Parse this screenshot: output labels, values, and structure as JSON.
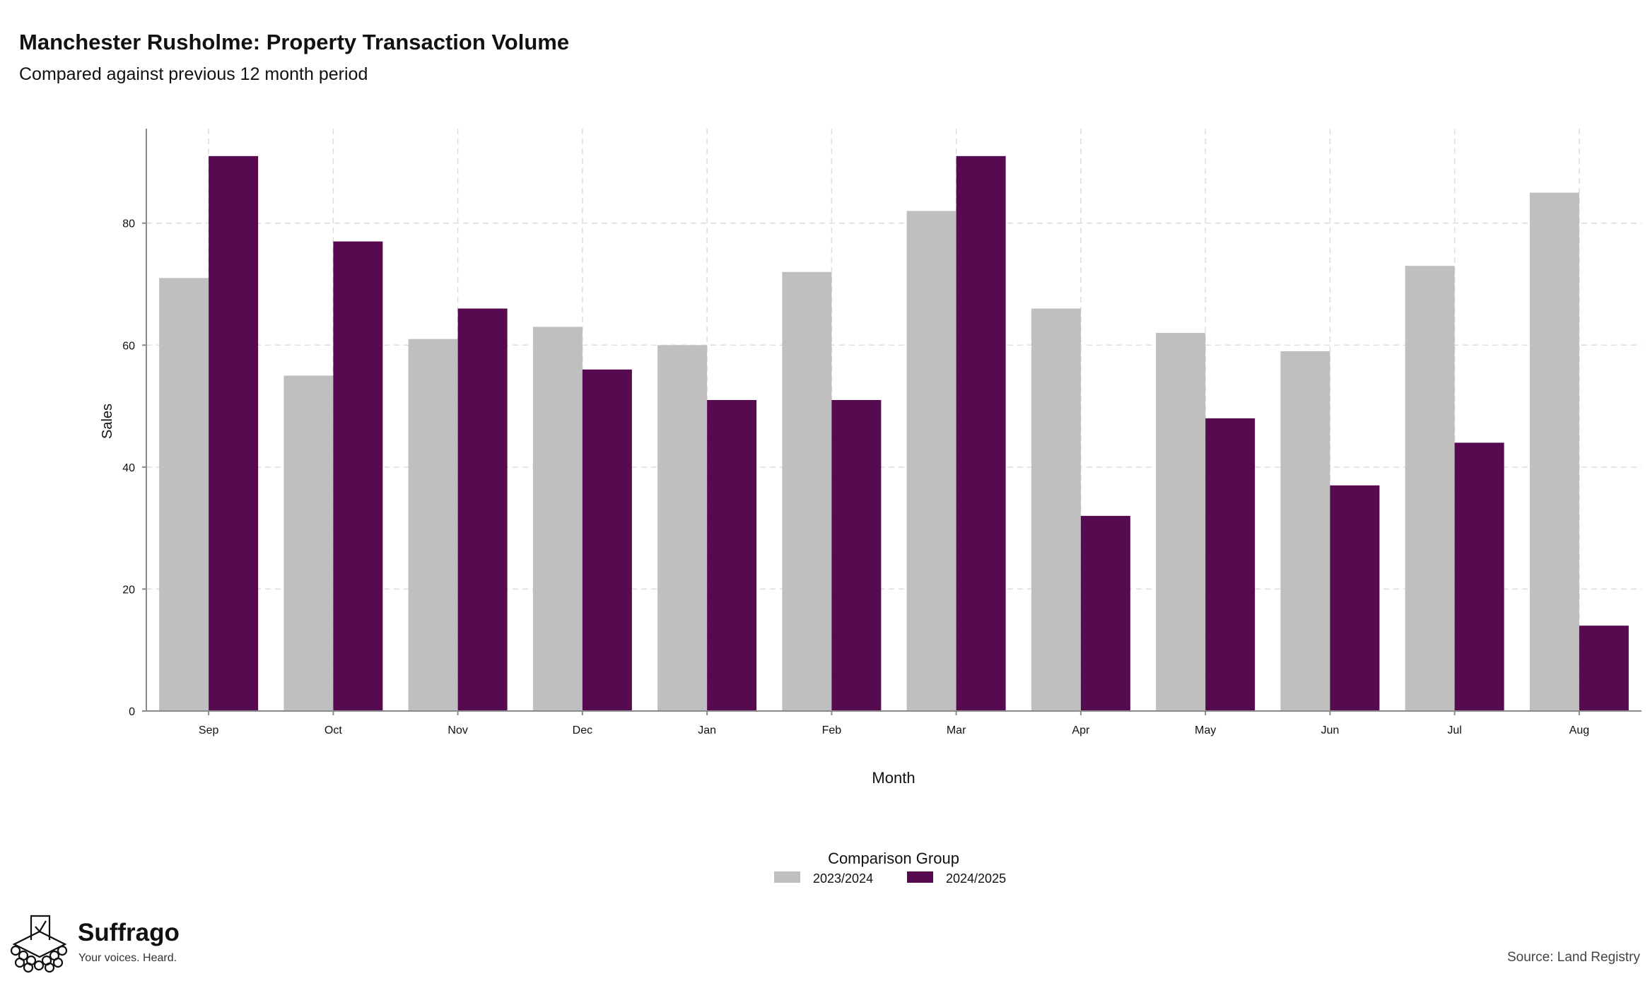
{
  "brand": {
    "name": "Suffrago",
    "tagline": "Your voices. Heard.",
    "logo_icon": "ballot-box-icon"
  },
  "source": "Source: Land Registry",
  "chart_data": {
    "type": "bar",
    "title": "Manchester Rusholme: Property Transaction Volume",
    "subtitle": "Compared against previous 12 month period",
    "xlabel": "Month",
    "ylabel": "Sales",
    "categories": [
      "Sep",
      "Oct",
      "Nov",
      "Dec",
      "Jan",
      "Feb",
      "Mar",
      "Apr",
      "May",
      "Jun",
      "Jul",
      "Aug"
    ],
    "series": [
      {
        "name": "2023/2024",
        "color": "#bfbfbf",
        "values": [
          71,
          55,
          61,
          63,
          60,
          72,
          82,
          66,
          62,
          59,
          73,
          85
        ]
      },
      {
        "name": "2024/2025",
        "color": "#560b51",
        "values": [
          91,
          77,
          66,
          56,
          51,
          51,
          91,
          32,
          48,
          37,
          44,
          14
        ]
      }
    ],
    "ylim": [
      0,
      95.5
    ],
    "yticks": [
      0,
      20,
      40,
      60,
      80
    ],
    "grid": true,
    "legend": {
      "title": "Comparison Group",
      "placement": "bottom-center"
    }
  }
}
